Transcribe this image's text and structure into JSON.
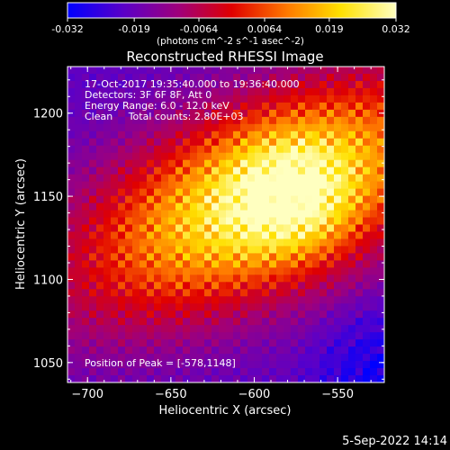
{
  "chart_data": {
    "type": "heatmap",
    "title": "Reconstructed RHESSI Image",
    "xlabel": "Heliocentric X (arcsec)",
    "ylabel": "Heliocentric Y (arcsec)",
    "xlim": [
      -712,
      -522
    ],
    "ylim": [
      1038,
      1228
    ],
    "xticks": [
      -700,
      -650,
      -600,
      -550
    ],
    "yticks": [
      1050,
      1100,
      1150,
      1200
    ],
    "colorbar": {
      "range": [
        -0.032,
        0.032
      ],
      "ticks": [
        "-0.032",
        "-0.019",
        "-0.0064",
        "0.0064",
        "0.019",
        "0.032"
      ],
      "label": "(photons cm^-2 s^-1 asec^-2)",
      "colors": [
        "#0000ff",
        "#5a00c8",
        "#a0007a",
        "#e00000",
        "#ff7a00",
        "#ffe000",
        "#ffffc0"
      ]
    },
    "annotations": [
      "17-Oct-2017 19:35:40.000 to 19:36:40.000",
      "Detectors: 3F 6F 8F, Att 0",
      "Energy Range: 6.0 - 12.0 keV",
      "Clean     Total counts: 2.80E+03"
    ],
    "peak_label": "Position of Peak = [-578,1148]",
    "peak": {
      "x": -578,
      "y": 1148
    },
    "grid": false
  },
  "footer": {
    "date": "5-Sep-2022 14:14"
  }
}
